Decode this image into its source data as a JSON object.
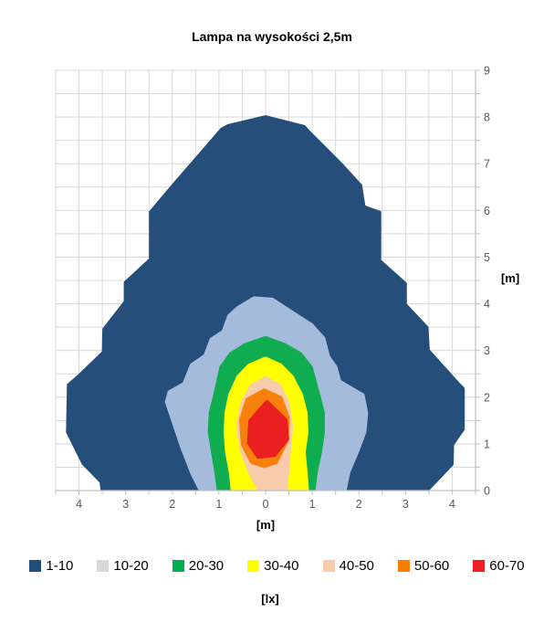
{
  "chart_data": {
    "type": "contour",
    "title": "Lampa na wysokości 2,5m",
    "xlabel": "[m]",
    "ylabel": "[m]",
    "legend_unit": "[lx]",
    "xlim": [
      -4.5,
      4.5
    ],
    "ylim": [
      0,
      9
    ],
    "grid_step": 0.5,
    "grid_on": true,
    "x_tick_values": [
      -4,
      -3,
      -2,
      -1,
      0,
      1,
      2,
      3,
      4
    ],
    "x_tick_labels": [
      "4",
      "3",
      "2",
      "1",
      "0",
      "1",
      "2",
      "3",
      "4"
    ],
    "y_tick_values": [
      0,
      1,
      2,
      3,
      4,
      5,
      6,
      7,
      8,
      9
    ],
    "y_tick_labels": [
      "0",
      "1",
      "2",
      "3",
      "4",
      "5",
      "6",
      "7",
      "8",
      "9"
    ],
    "colors": {
      "grid": "#d9d9d9",
      "axis_line": "#bfbfbf",
      "tick_text": "#595959",
      "title_text": "#000000"
    },
    "legend": [
      {
        "label": "1-10",
        "color": "#1f4e79"
      },
      {
        "label": "10-20",
        "color": "#d9d9d9"
      },
      {
        "label": "20-30",
        "color": "#00b050"
      },
      {
        "label": "30-40",
        "color": "#ffff00"
      },
      {
        "label": "40-50",
        "color": "#f8cbad"
      },
      {
        "label": "50-60",
        "color": "#fa7d00"
      },
      {
        "label": "60-70",
        "color": "#f01e1e"
      }
    ],
    "bands": [
      {
        "range": "1-10",
        "lx_min": 1,
        "lx_max": 10,
        "color": "#254e7b",
        "points": [
          [
            -3.52,
            0.02
          ],
          [
            -3.54,
            0.18
          ],
          [
            -3.92,
            0.57
          ],
          [
            -4.26,
            1.25
          ],
          [
            -4.24,
            2.27
          ],
          [
            -4.03,
            2.45
          ],
          [
            -3.49,
            2.97
          ],
          [
            -3.48,
            3.46
          ],
          [
            -3.02,
            4.05
          ],
          [
            -3.02,
            4.46
          ],
          [
            -2.48,
            4.96
          ],
          [
            -2.48,
            5.97
          ],
          [
            -2.05,
            6.48
          ],
          [
            -0.95,
            7.75
          ],
          [
            -0.8,
            7.83
          ],
          [
            0.0,
            8.02
          ],
          [
            0.83,
            7.81
          ],
          [
            0.96,
            7.67
          ],
          [
            1.64,
            6.99
          ],
          [
            2.05,
            6.54
          ],
          [
            2.12,
            6.09
          ],
          [
            2.46,
            5.97
          ],
          [
            2.46,
            4.93
          ],
          [
            3.01,
            4.44
          ],
          [
            3.01,
            3.99
          ],
          [
            3.47,
            3.5
          ],
          [
            3.5,
            3.01
          ],
          [
            4.15,
            2.29
          ],
          [
            4.25,
            2.19
          ],
          [
            4.25,
            1.31
          ],
          [
            4.02,
            0.98
          ],
          [
            4.01,
            0.56
          ],
          [
            3.5,
            0.02
          ]
        ]
      },
      {
        "range": "10-20",
        "lx_min": 10,
        "lx_max": 20,
        "color": "#a5bbdc",
        "points": [
          [
            -0.6,
            3.93
          ],
          [
            -0.25,
            4.14
          ],
          [
            0.15,
            4.11
          ],
          [
            0.55,
            3.85
          ],
          [
            1.0,
            3.56
          ],
          [
            1.26,
            3.27
          ],
          [
            1.36,
            2.88
          ],
          [
            1.52,
            2.65
          ],
          [
            1.6,
            2.35
          ],
          [
            2.1,
            2.06
          ],
          [
            2.18,
            1.67
          ],
          [
            2.14,
            1.25
          ],
          [
            1.98,
            0.82
          ],
          [
            1.8,
            0.4
          ],
          [
            1.72,
            0.02
          ],
          [
            -1.42,
            0.02
          ],
          [
            -1.58,
            0.33
          ],
          [
            -1.81,
            0.92
          ],
          [
            -2.14,
            1.9
          ],
          [
            -2.08,
            2.12
          ],
          [
            -1.76,
            2.3
          ],
          [
            -1.6,
            2.7
          ],
          [
            -1.31,
            2.9
          ],
          [
            -1.18,
            3.25
          ],
          [
            -0.92,
            3.42
          ],
          [
            -0.8,
            3.75
          ]
        ]
      },
      {
        "range": "20-30",
        "lx_min": 20,
        "lx_max": 30,
        "color": "#0fad4f",
        "points": [
          [
            0.0,
            3.29
          ],
          [
            0.41,
            3.14
          ],
          [
            0.76,
            2.94
          ],
          [
            0.99,
            2.65
          ],
          [
            1.15,
            2.06
          ],
          [
            1.25,
            1.67
          ],
          [
            1.25,
            1.25
          ],
          [
            1.19,
            0.82
          ],
          [
            1.1,
            0.4
          ],
          [
            1.05,
            0.02
          ],
          [
            -1.03,
            0.02
          ],
          [
            -1.08,
            0.4
          ],
          [
            -1.15,
            0.82
          ],
          [
            -1.22,
            1.25
          ],
          [
            -1.2,
            1.67
          ],
          [
            -1.1,
            2.06
          ],
          [
            -0.97,
            2.65
          ],
          [
            -0.76,
            2.94
          ],
          [
            -0.44,
            3.14
          ]
        ]
      },
      {
        "range": "30-40",
        "lx_min": 30,
        "lx_max": 40,
        "color": "#ffff00",
        "points": [
          [
            0.0,
            2.85
          ],
          [
            0.33,
            2.7
          ],
          [
            0.58,
            2.45
          ],
          [
            0.78,
            2.06
          ],
          [
            0.88,
            1.67
          ],
          [
            0.9,
            1.25
          ],
          [
            0.84,
            0.82
          ],
          [
            0.88,
            0.4
          ],
          [
            0.91,
            0.02
          ],
          [
            -0.73,
            0.02
          ],
          [
            -0.77,
            0.4
          ],
          [
            -0.85,
            0.82
          ],
          [
            -0.88,
            1.25
          ],
          [
            -0.86,
            1.67
          ],
          [
            -0.78,
            2.06
          ],
          [
            -0.6,
            2.45
          ],
          [
            -0.36,
            2.7
          ]
        ]
      },
      {
        "range": "40-50",
        "lx_min": 40,
        "lx_max": 50,
        "color": "#f8cbad",
        "points": [
          [
            0.0,
            2.43
          ],
          [
            0.31,
            2.26
          ],
          [
            0.49,
            1.9
          ],
          [
            0.57,
            1.38
          ],
          [
            0.52,
            0.85
          ],
          [
            0.49,
            0.4
          ],
          [
            0.45,
            0.02
          ],
          [
            -0.16,
            0.02
          ],
          [
            -0.36,
            0.4
          ],
          [
            -0.53,
            0.85
          ],
          [
            -0.61,
            1.38
          ],
          [
            -0.51,
            1.9
          ],
          [
            -0.31,
            2.26
          ]
        ]
      },
      {
        "range": "50-60",
        "lx_min": 50,
        "lx_max": 60,
        "color": "#f8800d",
        "points": [
          [
            -0.03,
            2.17
          ],
          [
            0.34,
            2.0
          ],
          [
            0.5,
            1.57
          ],
          [
            0.47,
            1.05
          ],
          [
            0.24,
            0.59
          ],
          [
            -0.03,
            0.5
          ],
          [
            -0.31,
            0.59
          ],
          [
            -0.51,
            0.98
          ],
          [
            -0.55,
            1.51
          ],
          [
            -0.41,
            1.96
          ]
        ]
      },
      {
        "range": "60-70",
        "lx_min": 60,
        "lx_max": 70,
        "color": "#ea1f1f",
        "points": [
          [
            0.03,
            1.93
          ],
          [
            0.45,
            1.52
          ],
          [
            0.49,
            1.1
          ],
          [
            0.2,
            0.74
          ],
          [
            -0.17,
            0.7
          ],
          [
            -0.38,
            1.02
          ],
          [
            -0.35,
            1.5
          ]
        ]
      }
    ]
  }
}
